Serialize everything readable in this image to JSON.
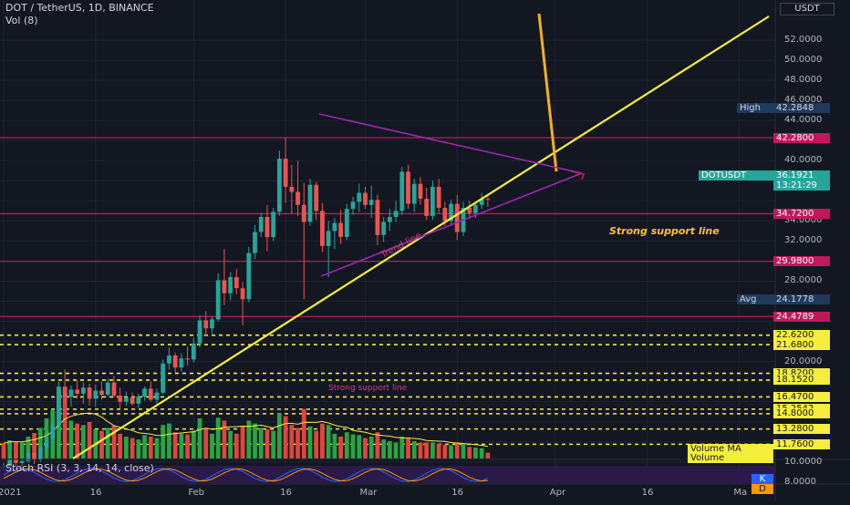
{
  "header": {
    "title": "DOT / TetherUS, 1D, BINANCE",
    "volume_label": "Vol (8)",
    "currency": "USDT"
  },
  "annotations": {
    "strong_support": "Strong support line",
    "strong_support_2": "Strong support line",
    "trend_line": "Trend line"
  },
  "price_tags": {
    "high_label": "High",
    "high_value": "42.2848",
    "dotusdt_label": "DOTUSDT",
    "last_price": "36.1921",
    "countdown": "13:21:29",
    "avg_label": "Avg",
    "avg_value": "24.1778",
    "volume_ma_label": "Volume MA",
    "volume_label": "Volume",
    "k_label": "K",
    "d_label": "D"
  },
  "colors": {
    "background": "#131722",
    "up": "#26a69a",
    "down": "#ef5350",
    "vol_up": "#26a641",
    "vol_down": "#e2453c",
    "yellow": "#f6ee3d",
    "orange": "#f2b21b",
    "magenta": "#c2185b",
    "purple": "#9c27b0"
  },
  "chart_data": {
    "type": "candlestick",
    "title": "DOT / TetherUS, 1D, BINANCE",
    "y_scale": "linear",
    "ylim": [
      7.8,
      56
    ],
    "y_ticks": [
      8,
      10,
      12,
      14,
      16,
      18,
      20,
      22,
      24,
      26,
      28,
      30,
      32,
      34,
      36,
      38,
      40,
      42,
      44,
      46,
      48,
      50,
      52
    ],
    "y_tick_labels": [
      "8.0000",
      "10.0000",
      "",
      "",
      "",
      "",
      "20.0000",
      "",
      "",
      "26.0000",
      "28.0000",
      "",
      "32.0000",
      "34.0000",
      "",
      "38.0000",
      "40.0000",
      "",
      "44.0000",
      "46.0000",
      "48.0000",
      "50.0000",
      "52.0000"
    ],
    "x_tick_labels": [
      "2021",
      "16",
      "Feb",
      "16",
      "Mar",
      "16",
      "Apr",
      "16",
      "Ma"
    ],
    "x_tick_days": [
      0,
      15,
      31,
      46,
      59,
      74,
      90,
      105,
      120
    ],
    "start_index_day": 0,
    "level_lines": [
      {
        "value": 42.28,
        "label": "42.2800",
        "style": "solid",
        "color": "#c2185b"
      },
      {
        "value": 34.72,
        "label": "34.7200",
        "style": "solid",
        "color": "#c2185b"
      },
      {
        "value": 29.98,
        "label": "29.9800",
        "style": "solid",
        "color": "#c2185b"
      },
      {
        "value": 24.4789,
        "label": "24.4789",
        "style": "solid",
        "color": "#c2185b"
      },
      {
        "value": 22.62,
        "label": "22.6200",
        "style": "dashed",
        "color": "#f6ee3d"
      },
      {
        "value": 21.68,
        "label": "21.6800",
        "style": "dashed",
        "color": "#f6ee3d"
      },
      {
        "value": 18.82,
        "label": "18.8200",
        "style": "dashed",
        "color": "#f6ee3d"
      },
      {
        "value": 18.152,
        "label": "18.1520",
        "style": "dashed",
        "color": "#f6ee3d"
      },
      {
        "value": 16.47,
        "label": "16.4700",
        "style": "dashed",
        "color": "#f6ee3d"
      },
      {
        "value": 15.2542,
        "label": "15.2542",
        "style": "dashed",
        "color": "#f6ee3d"
      },
      {
        "value": 14.8,
        "label": "14.8000",
        "style": "dashed",
        "color": "#f6ee3d"
      },
      {
        "value": 13.28,
        "label": "13.2800",
        "style": "dashed",
        "color": "#f6ee3d"
      },
      {
        "value": 11.76,
        "label": "11.7600",
        "style": "dashed",
        "color": "#f6ee3d"
      }
    ],
    "candles": [
      [
        9.3,
        9.9,
        9.1,
        9.6
      ],
      [
        9.6,
        10.8,
        9.4,
        10.3
      ],
      [
        10.3,
        10.7,
        9.6,
        9.9
      ],
      [
        9.9,
        10.4,
        9.5,
        10.1
      ],
      [
        10.1,
        11.2,
        9.9,
        10.9
      ],
      [
        10.9,
        11.0,
        9.8,
        10.2
      ],
      [
        10.2,
        11.6,
        10.0,
        11.4
      ],
      [
        11.4,
        12.9,
        11.0,
        12.4
      ],
      [
        12.4,
        14.0,
        11.9,
        13.7
      ],
      [
        13.7,
        18.0,
        13.3,
        17.5
      ],
      [
        17.5,
        19.2,
        15.9,
        16.5
      ],
      [
        16.5,
        17.6,
        15.5,
        17.2
      ],
      [
        17.2,
        18.1,
        16.3,
        16.8
      ],
      [
        16.8,
        17.9,
        15.8,
        17.4
      ],
      [
        17.4,
        17.8,
        15.6,
        16.3
      ],
      [
        16.3,
        17.7,
        15.5,
        17.1
      ],
      [
        17.1,
        18.0,
        16.2,
        16.7
      ],
      [
        16.7,
        18.3,
        16.5,
        17.9
      ],
      [
        17.9,
        18.6,
        16.4,
        16.6
      ],
      [
        16.6,
        17.4,
        15.3,
        16.0
      ],
      [
        16.0,
        17.0,
        15.6,
        16.4
      ],
      [
        16.4,
        16.9,
        15.6,
        15.8
      ],
      [
        15.8,
        16.8,
        15.4,
        16.5
      ],
      [
        16.5,
        17.5,
        16.1,
        17.3
      ],
      [
        17.3,
        18.0,
        16.0,
        16.2
      ],
      [
        16.2,
        17.3,
        15.8,
        16.9
      ],
      [
        16.9,
        20.2,
        16.7,
        19.8
      ],
      [
        19.8,
        21.4,
        19.2,
        20.6
      ],
      [
        20.6,
        20.9,
        18.9,
        19.4
      ],
      [
        19.4,
        20.8,
        19.0,
        20.3
      ],
      [
        20.3,
        21.5,
        19.6,
        20.2
      ],
      [
        20.2,
        22.4,
        19.9,
        21.8
      ],
      [
        21.8,
        24.6,
        21.4,
        24.1
      ],
      [
        24.1,
        25.0,
        22.5,
        23.3
      ],
      [
        23.3,
        24.5,
        22.8,
        24.2
      ],
      [
        24.2,
        28.8,
        24.0,
        28.1
      ],
      [
        28.1,
        31.2,
        25.6,
        26.8
      ],
      [
        26.8,
        28.9,
        26.1,
        28.4
      ],
      [
        28.4,
        29.2,
        26.7,
        27.3
      ],
      [
        27.3,
        27.9,
        23.6,
        26.2
      ],
      [
        26.2,
        31.4,
        25.9,
        30.8
      ],
      [
        30.8,
        33.6,
        30.2,
        32.9
      ],
      [
        32.9,
        34.8,
        32.4,
        34.4
      ],
      [
        34.4,
        35.6,
        31.0,
        32.4
      ],
      [
        32.4,
        35.3,
        32.0,
        34.9
      ],
      [
        34.9,
        41.0,
        34.5,
        40.2
      ],
      [
        40.2,
        42.3,
        35.8,
        37.4
      ],
      [
        37.4,
        39.6,
        34.7,
        36.9
      ],
      [
        36.9,
        40.0,
        34.5,
        35.6
      ],
      [
        35.6,
        37.8,
        26.2,
        33.9
      ],
      [
        33.9,
        38.2,
        33.5,
        37.6
      ],
      [
        37.6,
        37.9,
        34.1,
        35.0
      ],
      [
        35.0,
        35.8,
        30.9,
        31.5
      ],
      [
        31.5,
        34.0,
        28.4,
        33.0
      ],
      [
        33.0,
        34.3,
        31.2,
        33.8
      ],
      [
        33.8,
        35.1,
        31.7,
        32.4
      ],
      [
        32.4,
        35.7,
        32.1,
        35.2
      ],
      [
        35.2,
        36.4,
        34.6,
        35.9
      ],
      [
        35.9,
        37.7,
        34.9,
        36.8
      ],
      [
        36.8,
        37.4,
        35.2,
        35.6
      ],
      [
        35.6,
        37.5,
        34.3,
        36.1
      ],
      [
        36.1,
        36.6,
        31.6,
        32.6
      ],
      [
        32.6,
        34.4,
        31.9,
        33.9
      ],
      [
        33.9,
        35.2,
        33.0,
        34.4
      ],
      [
        34.4,
        36.0,
        33.9,
        35.0
      ],
      [
        35.0,
        39.4,
        34.6,
        38.9
      ],
      [
        38.9,
        39.6,
        35.2,
        35.7
      ],
      [
        35.7,
        38.2,
        34.9,
        37.7
      ],
      [
        37.7,
        38.4,
        35.6,
        36.2
      ],
      [
        36.2,
        37.3,
        34.1,
        34.5
      ],
      [
        34.5,
        38.0,
        34.1,
        37.4
      ],
      [
        37.4,
        38.2,
        34.8,
        35.3
      ],
      [
        35.3,
        35.9,
        33.5,
        34.0
      ],
      [
        34.0,
        36.1,
        33.6,
        35.7
      ],
      [
        35.7,
        36.6,
        32.1,
        32.9
      ],
      [
        32.9,
        35.9,
        32.5,
        35.3
      ],
      [
        35.3,
        36.0,
        34.2,
        34.8
      ],
      [
        34.8,
        35.9,
        34.3,
        35.6
      ],
      [
        35.6,
        36.8,
        35.2,
        36.2
      ],
      [
        36.2,
        36.7,
        35.4,
        36.19
      ]
    ],
    "volumes": [
      [
        "d",
        0.21
      ],
      [
        "u",
        0.25
      ],
      [
        "d",
        0.23
      ],
      [
        "u",
        0.22
      ],
      [
        "u",
        0.3
      ],
      [
        "d",
        0.35
      ],
      [
        "u",
        0.42
      ],
      [
        "u",
        0.55
      ],
      [
        "u",
        0.66
      ],
      [
        "u",
        0.95
      ],
      [
        "d",
        0.88
      ],
      [
        "u",
        0.52
      ],
      [
        "d",
        0.48
      ],
      [
        "u",
        0.46
      ],
      [
        "d",
        0.5
      ],
      [
        "u",
        0.4
      ],
      [
        "d",
        0.38
      ],
      [
        "u",
        0.42
      ],
      [
        "d",
        0.45
      ],
      [
        "d",
        0.34
      ],
      [
        "u",
        0.3
      ],
      [
        "d",
        0.28
      ],
      [
        "u",
        0.26
      ],
      [
        "u",
        0.32
      ],
      [
        "d",
        0.3
      ],
      [
        "u",
        0.28
      ],
      [
        "u",
        0.46
      ],
      [
        "u",
        0.48
      ],
      [
        "d",
        0.36
      ],
      [
        "u",
        0.34
      ],
      [
        "d",
        0.33
      ],
      [
        "u",
        0.38
      ],
      [
        "u",
        0.55
      ],
      [
        "d",
        0.42
      ],
      [
        "u",
        0.34
      ],
      [
        "u",
        0.56
      ],
      [
        "d",
        0.52
      ],
      [
        "u",
        0.38
      ],
      [
        "d",
        0.34
      ],
      [
        "d",
        0.44
      ],
      [
        "u",
        0.52
      ],
      [
        "u",
        0.48
      ],
      [
        "u",
        0.42
      ],
      [
        "d",
        0.4
      ],
      [
        "u",
        0.38
      ],
      [
        "u",
        0.62
      ],
      [
        "d",
        0.58
      ],
      [
        "d",
        0.46
      ],
      [
        "d",
        0.42
      ],
      [
        "d",
        0.68
      ],
      [
        "u",
        0.44
      ],
      [
        "d",
        0.38
      ],
      [
        "d",
        0.48
      ],
      [
        "u",
        0.46
      ],
      [
        "u",
        0.34
      ],
      [
        "d",
        0.3
      ],
      [
        "u",
        0.36
      ],
      [
        "u",
        0.33
      ],
      [
        "u",
        0.32
      ],
      [
        "d",
        0.28
      ],
      [
        "u",
        0.3
      ],
      [
        "d",
        0.36
      ],
      [
        "u",
        0.26
      ],
      [
        "u",
        0.24
      ],
      [
        "u",
        0.22
      ],
      [
        "u",
        0.3
      ],
      [
        "d",
        0.28
      ],
      [
        "u",
        0.24
      ],
      [
        "d",
        0.22
      ],
      [
        "d",
        0.22
      ],
      [
        "u",
        0.22
      ],
      [
        "d",
        0.2
      ],
      [
        "d",
        0.19
      ],
      [
        "u",
        0.18
      ],
      [
        "d",
        0.22
      ],
      [
        "u",
        0.2
      ],
      [
        "d",
        0.16
      ],
      [
        "u",
        0.15
      ],
      [
        "u",
        0.14
      ],
      [
        "d",
        0.08
      ]
    ]
  }
}
